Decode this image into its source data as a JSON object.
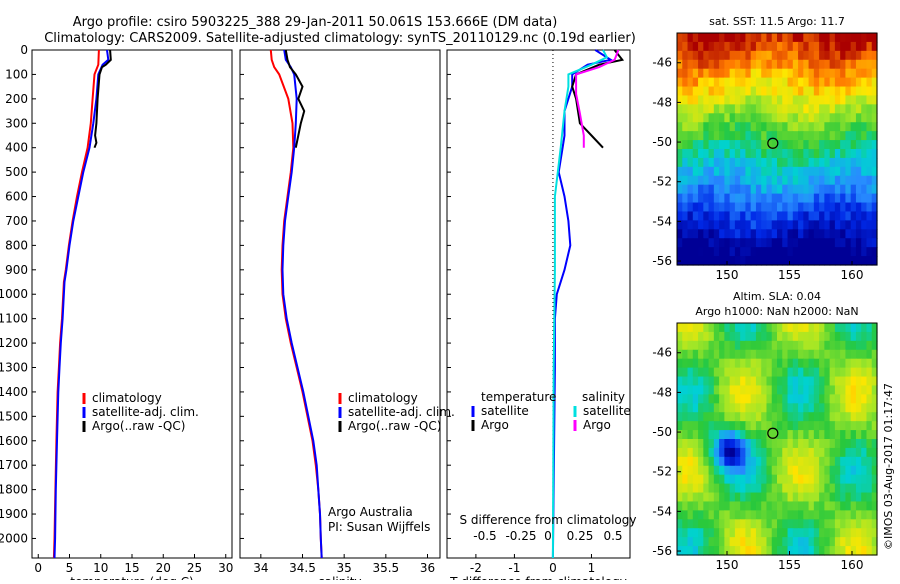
{
  "title_line1": "Argo profile: csiro 5903225_388 29-Jan-2011 50.061S 153.666E (DM data)",
  "title_line2": "Climatology: CARS2009. Satellite-adjusted climatology: synTS_20110129.nc (0.19d earlier)",
  "imos_stamp": "©IMOS 03-Aug-2017 01:17:47",
  "colors": {
    "climatology": "#ff0000",
    "satellite": "#0000ff",
    "argo": "#000000",
    "salinity_satellite": "#00e0e0",
    "salinity_argo": "#ff00ff"
  },
  "chart_data": [
    {
      "type": "line",
      "id": "temperature",
      "xlabel": "temperature (deg C)",
      "ylim": [
        2080,
        0
      ],
      "xlim": [
        -1,
        31
      ],
      "xticks": [
        "0",
        "5",
        "10",
        "15",
        "20",
        "25",
        "30"
      ],
      "yticks": [
        "0",
        "100",
        "200",
        "300",
        "400",
        "500",
        "600",
        "700",
        "800",
        "900",
        "1000",
        "1100",
        "1200",
        "1300",
        "1400",
        "1500",
        "1600",
        "1700",
        "1800",
        "1900",
        "2000"
      ],
      "legend": [
        "climatology",
        "satellite-adj. clim.",
        "Argo(..raw -QC)"
      ],
      "series": [
        {
          "name": "climatology",
          "color": "#ff0000",
          "points": [
            [
              9.7,
              0
            ],
            [
              9.6,
              60
            ],
            [
              9.0,
              100
            ],
            [
              8.7,
              200
            ],
            [
              8.4,
              300
            ],
            [
              7.9,
              400
            ],
            [
              7.0,
              500
            ],
            [
              6.2,
              600
            ],
            [
              5.5,
              700
            ],
            [
              4.9,
              800
            ],
            [
              4.4,
              900
            ],
            [
              4.1,
              950
            ],
            [
              3.8,
              1100
            ],
            [
              3.5,
              1200
            ],
            [
              3.3,
              1300
            ],
            [
              3.1,
              1400
            ],
            [
              2.9,
              1600
            ],
            [
              2.75,
              1800
            ],
            [
              2.6,
              2000
            ],
            [
              2.5,
              2080
            ]
          ]
        },
        {
          "name": "satellite-adj. clim.",
          "color": "#0000ff",
          "points": [
            [
              11.0,
              0
            ],
            [
              11.2,
              40
            ],
            [
              10.3,
              60
            ],
            [
              9.6,
              100
            ],
            [
              9.3,
              200
            ],
            [
              8.8,
              300
            ],
            [
              8.2,
              400
            ],
            [
              7.2,
              500
            ],
            [
              6.4,
              600
            ],
            [
              5.6,
              700
            ],
            [
              5.0,
              800
            ],
            [
              4.5,
              900
            ],
            [
              4.2,
              950
            ],
            [
              3.9,
              1100
            ],
            [
              3.6,
              1200
            ],
            [
              3.4,
              1300
            ],
            [
              3.2,
              1400
            ],
            [
              3.0,
              1600
            ],
            [
              2.8,
              1800
            ],
            [
              2.7,
              2000
            ],
            [
              2.6,
              2080
            ]
          ]
        },
        {
          "name": "Argo(..raw -QC)",
          "color": "#000000",
          "points": [
            [
              11.5,
              0
            ],
            [
              11.6,
              40
            ],
            [
              10.8,
              60
            ],
            [
              10.2,
              70
            ],
            [
              9.8,
              100
            ],
            [
              9.5,
              200
            ],
            [
              9.3,
              300
            ],
            [
              9.1,
              350
            ],
            [
              9.3,
              380
            ],
            [
              9.0,
              400
            ]
          ]
        }
      ]
    },
    {
      "type": "line",
      "id": "salinity",
      "xlabel": "salinity",
      "ylim": [
        2080,
        0
      ],
      "xlim": [
        33.75,
        36.15
      ],
      "xticks": [
        "34",
        "34.5",
        "35",
        "35.5",
        "36"
      ],
      "legend": [
        "climatology",
        "satellite-adj. clim.",
        "Argo(..raw -QC)"
      ],
      "series": [
        {
          "name": "climatology",
          "color": "#ff0000",
          "points": [
            [
              34.12,
              0
            ],
            [
              34.13,
              40
            ],
            [
              34.16,
              70
            ],
            [
              34.22,
              100
            ],
            [
              34.33,
              200
            ],
            [
              34.38,
              300
            ],
            [
              34.39,
              400
            ],
            [
              34.36,
              500
            ],
            [
              34.32,
              600
            ],
            [
              34.28,
              700
            ],
            [
              34.26,
              800
            ],
            [
              34.25,
              900
            ],
            [
              34.26,
              1000
            ],
            [
              34.3,
              1100
            ],
            [
              34.36,
              1200
            ],
            [
              34.43,
              1300
            ],
            [
              34.5,
              1400
            ],
            [
              34.56,
              1500
            ],
            [
              34.62,
              1600
            ],
            [
              34.66,
              1700
            ],
            [
              34.69,
              1800
            ],
            [
              34.71,
              1900
            ],
            [
              34.72,
              2000
            ],
            [
              34.73,
              2080
            ]
          ]
        },
        {
          "name": "satellite-adj. clim.",
          "color": "#0000ff",
          "points": [
            [
              34.28,
              0
            ],
            [
              34.3,
              40
            ],
            [
              34.36,
              70
            ],
            [
              34.4,
              100
            ],
            [
              34.43,
              200
            ],
            [
              34.42,
              300
            ],
            [
              34.4,
              400
            ],
            [
              34.37,
              500
            ],
            [
              34.33,
              600
            ],
            [
              34.29,
              700
            ],
            [
              34.27,
              800
            ],
            [
              34.26,
              900
            ],
            [
              34.27,
              1000
            ],
            [
              34.31,
              1100
            ],
            [
              34.37,
              1200
            ],
            [
              34.44,
              1300
            ],
            [
              34.51,
              1400
            ],
            [
              34.57,
              1500
            ],
            [
              34.63,
              1600
            ],
            [
              34.67,
              1700
            ],
            [
              34.69,
              1800
            ],
            [
              34.71,
              1900
            ],
            [
              34.72,
              2000
            ],
            [
              34.73,
              2080
            ]
          ]
        },
        {
          "name": "Argo(..raw -QC)",
          "color": "#000000",
          "points": [
            [
              34.3,
              0
            ],
            [
              34.32,
              40
            ],
            [
              34.35,
              70
            ],
            [
              34.42,
              100
            ],
            [
              34.5,
              150
            ],
            [
              34.45,
              200
            ],
            [
              34.52,
              250
            ],
            [
              34.48,
              300
            ],
            [
              34.45,
              350
            ],
            [
              34.42,
              400
            ]
          ]
        }
      ]
    },
    {
      "type": "line",
      "id": "difference",
      "xlabel": "T difference from climatology",
      "xlabel_top": "S difference from climatology",
      "ylim": [
        2080,
        0
      ],
      "xlim": [
        -2.75,
        2.0
      ],
      "xticks": [
        "-2",
        "-1",
        "0",
        "1"
      ],
      "xticks_top": [
        "-0.5",
        "-0.25",
        "0",
        "0.25",
        "0.5"
      ],
      "legend_headers": [
        "temperature",
        "salinity"
      ],
      "legend": [
        "satellite",
        "Argo",
        "satellite",
        "Argo"
      ],
      "series": [
        {
          "name": "satellite",
          "color": "#0000ff",
          "points": [
            [
              1.1,
              0
            ],
            [
              1.5,
              40
            ],
            [
              0.9,
              60
            ],
            [
              0.5,
              100
            ],
            [
              0.5,
              150
            ],
            [
              0.3,
              250
            ],
            [
              0.3,
              350
            ],
            [
              0.25,
              400
            ],
            [
              0.15,
              500
            ],
            [
              0.3,
              600
            ],
            [
              0.4,
              700
            ],
            [
              0.45,
              800
            ],
            [
              0.3,
              900
            ],
            [
              0.1,
              1000
            ],
            [
              0.05,
              1100
            ],
            [
              0.05,
              1200
            ],
            [
              0.05,
              1300
            ],
            [
              0,
              2080
            ]
          ]
        },
        {
          "name": "Argo",
          "color": "#000000",
          "points": [
            [
              1.6,
              0
            ],
            [
              1.8,
              40
            ],
            [
              1.2,
              60
            ],
            [
              0.6,
              100
            ],
            [
              0.5,
              150
            ],
            [
              0.6,
              200
            ],
            [
              0.7,
              300
            ],
            [
              1.0,
              350
            ],
            [
              1.3,
              400
            ]
          ]
        },
        {
          "name": "satellite",
          "color": "#00e0e0",
          "points": [
            [
              1.3,
              0
            ],
            [
              1.4,
              30
            ],
            [
              1.0,
              60
            ],
            [
              0.4,
              100
            ],
            [
              0.4,
              150
            ],
            [
              0.3,
              250
            ],
            [
              0.2,
              400
            ],
            [
              0.05,
              600
            ],
            [
              0.05,
              900
            ],
            [
              0.02,
              1300
            ],
            [
              0,
              2080
            ]
          ]
        },
        {
          "name": "Argo",
          "color": "#ff00ff",
          "points": [
            [
              1.7,
              0
            ],
            [
              1.6,
              40
            ],
            [
              1.2,
              70
            ],
            [
              0.6,
              100
            ],
            [
              0.6,
              180
            ],
            [
              0.7,
              260
            ],
            [
              0.8,
              350
            ],
            [
              0.8,
              400
            ]
          ]
        }
      ]
    },
    {
      "type": "heatmap",
      "id": "sst-map",
      "title": "sat. SST: 11.5 Argo: 11.7",
      "xticks": [
        "150",
        "155",
        "160"
      ],
      "yticks": [
        "-46",
        "-48",
        "-50",
        "-52",
        "-54",
        "-56"
      ],
      "xlim": [
        146,
        162
      ],
      "ylim": [
        -56.2,
        -44.5
      ],
      "marker": {
        "lon": 153.666,
        "lat": -50.061
      }
    },
    {
      "type": "heatmap",
      "id": "sla-map",
      "title": "Altim. SLA: 0.04",
      "title_line2": "Argo h1000: NaN h2000: NaN",
      "xticks": [
        "150",
        "155",
        "160"
      ],
      "yticks": [
        "-46",
        "-48",
        "-50",
        "-52",
        "-54",
        "-56"
      ],
      "xlim": [
        146,
        162
      ],
      "ylim": [
        -56.2,
        -44.5
      ],
      "marker": {
        "lon": 153.666,
        "lat": -50.061
      }
    }
  ],
  "footer": {
    "line1": "Argo Australia",
    "line2": "PI: Susan Wijffels"
  }
}
